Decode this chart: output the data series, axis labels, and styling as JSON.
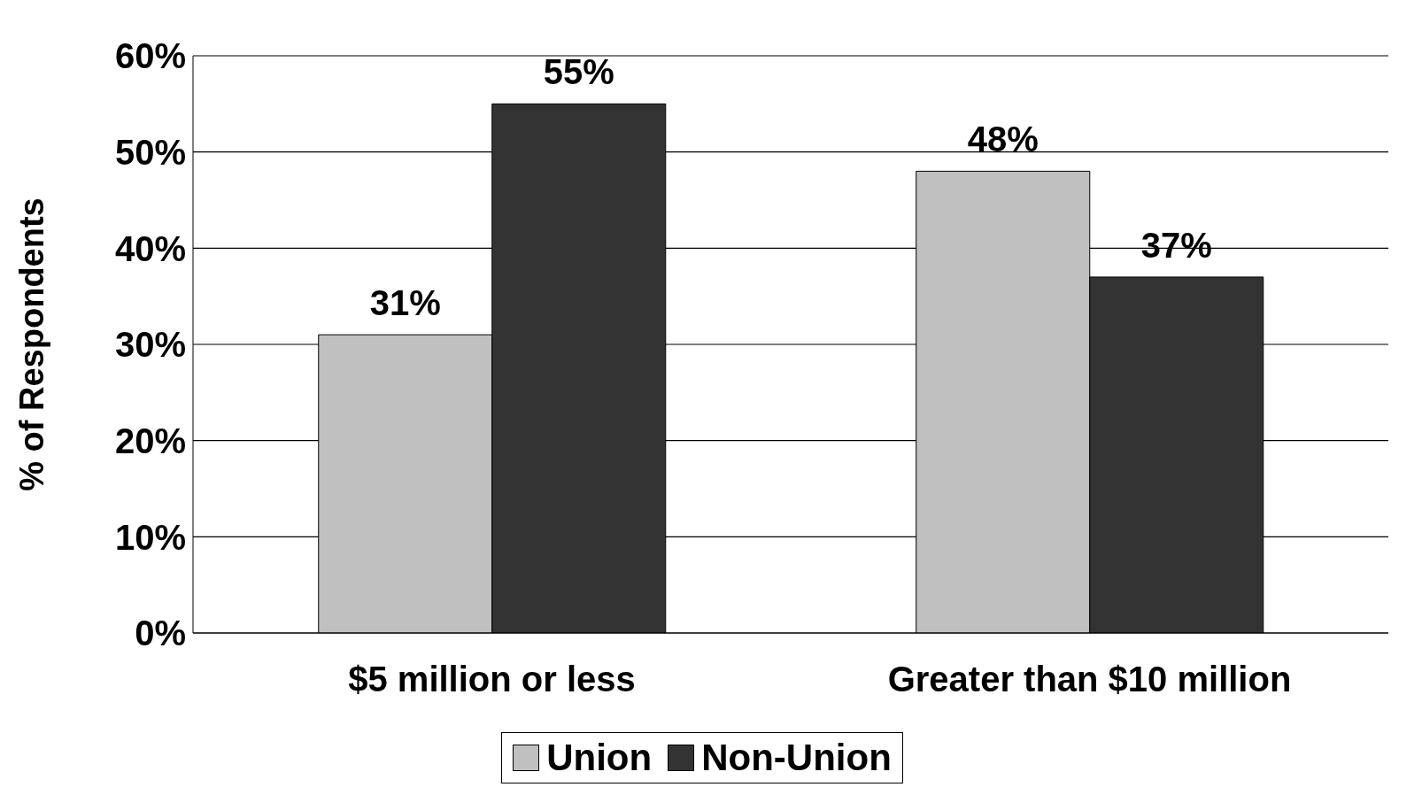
{
  "chart_data": {
    "type": "bar",
    "ylabel": "% of Respondents",
    "categories": [
      "$5 million or less",
      "Greater than $10 million"
    ],
    "series": [
      {
        "name": "Union",
        "color": "#c0c0c0",
        "values": [
          31,
          48
        ],
        "value_labels": [
          "31%",
          "48%"
        ]
      },
      {
        "name": "Non-Union",
        "color": "#333333",
        "values": [
          55,
          37
        ],
        "value_labels": [
          "55%",
          "37%"
        ]
      }
    ],
    "ylim": [
      0,
      60
    ],
    "yticks": [
      {
        "value": 0,
        "label": "0%"
      },
      {
        "value": 10,
        "label": "10%"
      },
      {
        "value": 20,
        "label": "20%"
      },
      {
        "value": 30,
        "label": "30%"
      },
      {
        "value": 40,
        "label": "40%"
      },
      {
        "value": 50,
        "label": "50%"
      },
      {
        "value": 60,
        "label": "60%"
      }
    ],
    "grid": "y",
    "legend": "bottom"
  }
}
